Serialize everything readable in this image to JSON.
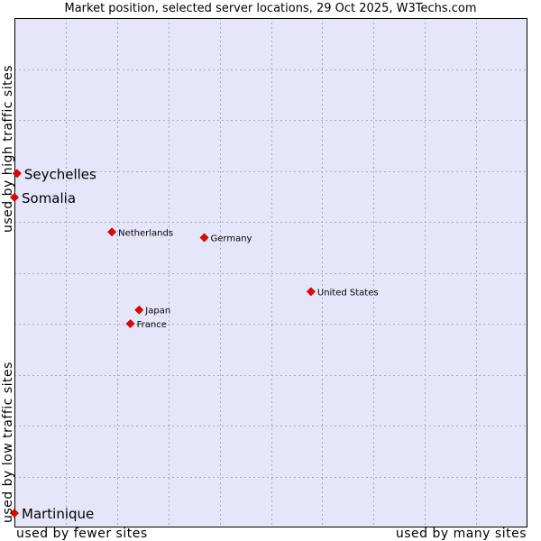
{
  "chart_data": {
    "type": "scatter",
    "title": "Market position, selected server locations, 29 Oct 2025, W3Techs.com",
    "xlabel_low": "used by fewer sites",
    "xlabel_high": "used by many sites",
    "ylabel_low": "used by low traffic sites",
    "ylabel_high": "used by high traffic sites",
    "xlim": [
      0,
      100
    ],
    "ylim": [
      0,
      100
    ],
    "grid": true,
    "points": [
      {
        "name": "Seychelles",
        "x": 0.5,
        "y": 69.5,
        "highlight": true
      },
      {
        "name": "Somalia",
        "x": 0.0,
        "y": 64.8,
        "highlight": true
      },
      {
        "name": "Martinique",
        "x": 0.0,
        "y": 2.8,
        "highlight": true
      },
      {
        "name": "Netherlands",
        "x": 19.0,
        "y": 58.0,
        "highlight": false
      },
      {
        "name": "Germany",
        "x": 37.0,
        "y": 56.9,
        "highlight": false
      },
      {
        "name": "United States",
        "x": 57.8,
        "y": 46.3,
        "highlight": false
      },
      {
        "name": "Japan",
        "x": 24.3,
        "y": 42.7,
        "highlight": false
      },
      {
        "name": "France",
        "x": 22.6,
        "y": 40.0,
        "highlight": false
      }
    ]
  },
  "colors": {
    "plot_bg": "#e6e6fa",
    "grid": "#a9a9b9",
    "marker": "#ee0000",
    "border": "#000000"
  }
}
